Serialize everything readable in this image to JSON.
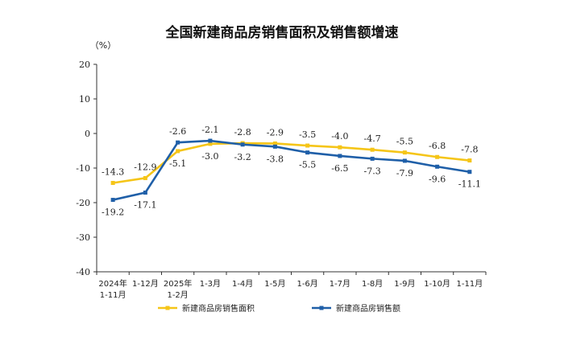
{
  "chart_data": {
    "type": "line",
    "title": "全国新建商品房销售面积及销售额增速",
    "unit_label": "（%）",
    "ylim": [
      -40,
      20
    ],
    "yticks": [
      20,
      10,
      0,
      -10,
      -20,
      -30,
      -40
    ],
    "categories": [
      [
        "2024年",
        "1-11月"
      ],
      [
        "1-12月"
      ],
      [
        "2025年",
        "1-2月"
      ],
      [
        "1-3月"
      ],
      [
        "1-4月"
      ],
      [
        "1-5月"
      ],
      [
        "1-6月"
      ],
      [
        "1-7月"
      ],
      [
        "1-8月"
      ],
      [
        "1-9月"
      ],
      [
        "1-10月"
      ],
      [
        "1-11月"
      ]
    ],
    "series": [
      {
        "name": "新建商品房销售面积",
        "color": "#F5C518",
        "values": [
          -14.3,
          -12.9,
          -5.1,
          -3.0,
          -2.8,
          -2.9,
          -3.5,
          -4.0,
          -4.7,
          -5.5,
          -6.8,
          -7.8
        ],
        "labels": [
          "-14.3",
          "-12.9",
          "-5.1",
          "-3.0",
          "-2.8",
          "-2.9",
          "-3.5",
          "-4.0",
          "-4.7",
          "-5.5",
          "-6.8",
          "-7.8"
        ]
      },
      {
        "name": "新建商品房销售额",
        "color": "#1F5FA8",
        "values": [
          -19.2,
          -17.1,
          -2.6,
          -2.1,
          -3.2,
          -3.8,
          -5.5,
          -6.5,
          -7.3,
          -7.9,
          -9.6,
          -11.1
        ],
        "labels": [
          "-19.2",
          "-17.1",
          "-2.6",
          "-2.1",
          "-3.2",
          "-3.8",
          "-5.5",
          "-6.5",
          "-7.3",
          "-7.9",
          "-9.6",
          "-11.1"
        ]
      }
    ],
    "legend_position": "bottom"
  }
}
